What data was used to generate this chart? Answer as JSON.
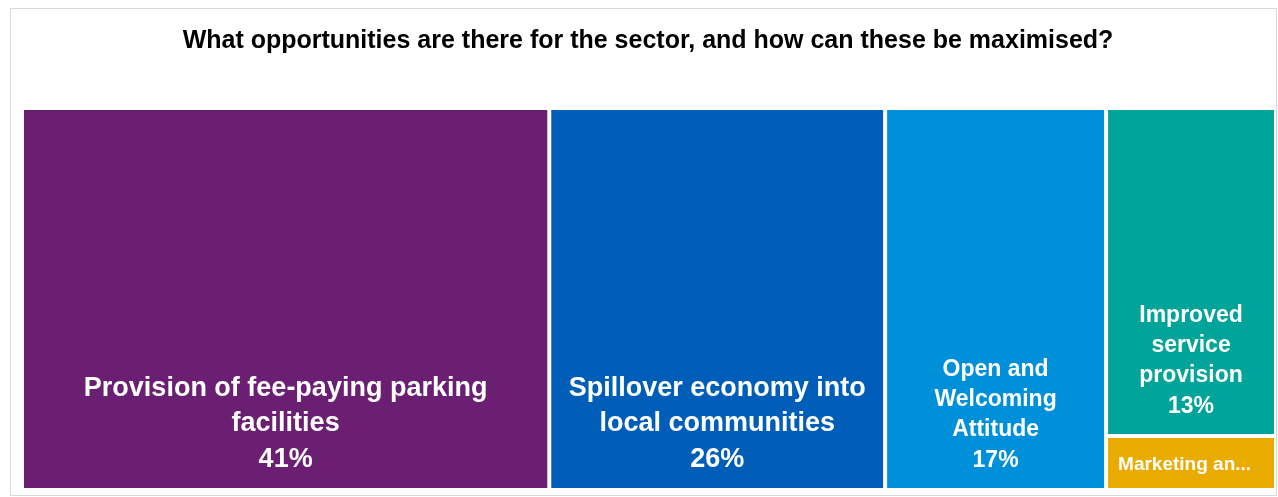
{
  "chart_data": {
    "type": "other",
    "title": "What opportunities are there for the sector, and how can these be maximised?",
    "categories": [
      "Provision of fee-paying parking facilities",
      "Spillover economy into local communities",
      "Open and Welcoming Attitude",
      "Improved service provision",
      "Marketing an..."
    ],
    "values": [
      41,
      26,
      17,
      13,
      null
    ],
    "colors": [
      "#6a1f73",
      "#005eb8",
      "#0090da",
      "#00a499",
      "#eaab00"
    ],
    "value_labels": [
      "41%",
      "26%",
      "17%",
      "13%",
      null
    ]
  }
}
